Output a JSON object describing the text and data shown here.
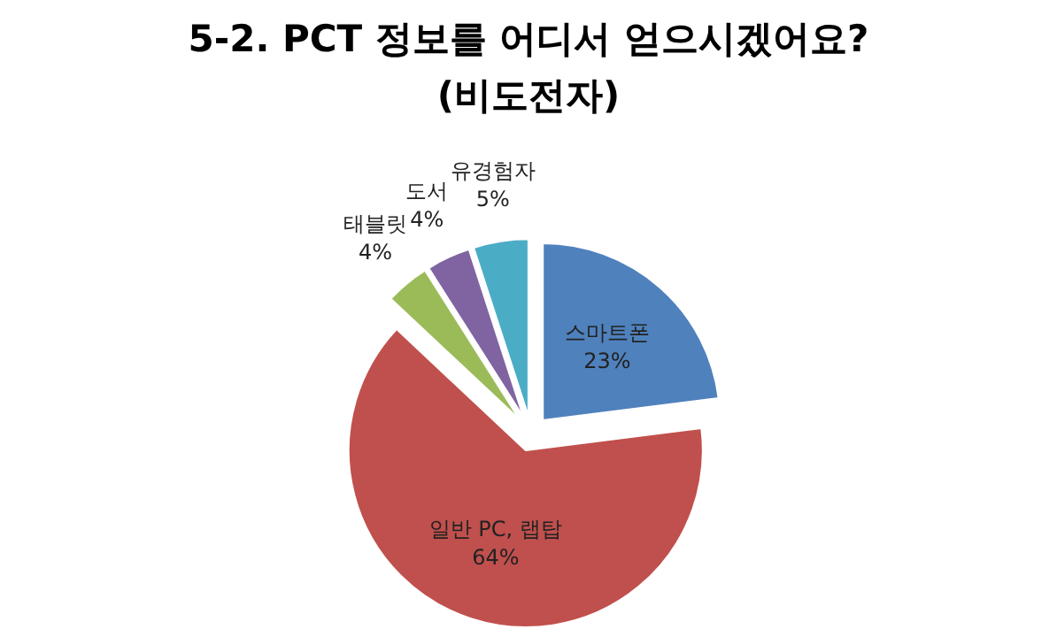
{
  "chart_data": {
    "type": "pie",
    "title": "5-2. PCT 정보를 어디서 얻으시겠어요? (비도전자)",
    "categories": [
      "스마트폰",
      "일반 PC, 랩탑",
      "태블릿",
      "도서",
      "유경험자"
    ],
    "values": [
      23,
      64,
      4,
      4,
      5
    ],
    "value_labels": [
      "23%",
      "64%",
      "4%",
      "4%",
      "5%"
    ],
    "colors": [
      "#4f81bd",
      "#c0504d",
      "#9bbb59",
      "#8064a2",
      "#4bacc6"
    ]
  }
}
